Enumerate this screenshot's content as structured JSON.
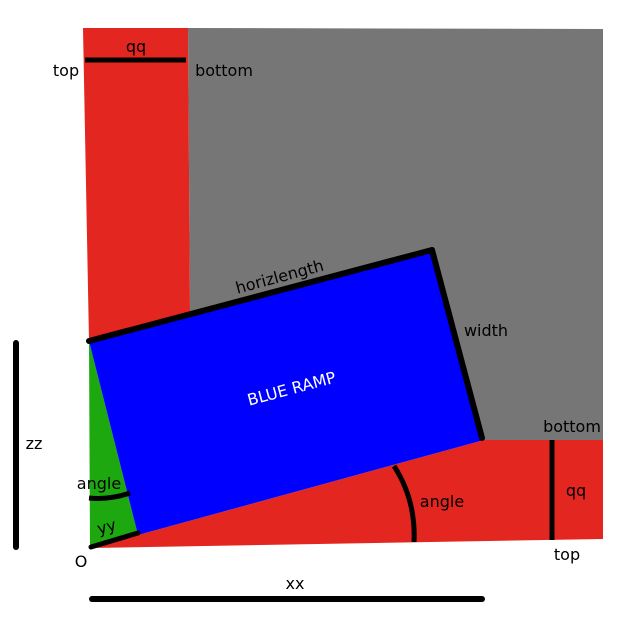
{
  "colors": {
    "background": "#ffffff",
    "gray_region": "#767676",
    "red_region": "#e42620",
    "blue_ramp": "#0000ff",
    "green_region": "#1ea810",
    "lines": "#000000",
    "ramp_text": "#ffffff"
  },
  "labels": {
    "qq_top": "qq",
    "top_left": "top",
    "bottom_left": "bottom",
    "horizlength": "horizlength",
    "width": "width",
    "ramp_title": "BLUE RAMP",
    "bottom_right": "bottom",
    "qq_right": "qq",
    "top_right": "top",
    "zz": "zz",
    "angle_left": "angle",
    "yy": "yy",
    "origin": "O",
    "angle_bottom": "angle",
    "xx": "xx"
  }
}
